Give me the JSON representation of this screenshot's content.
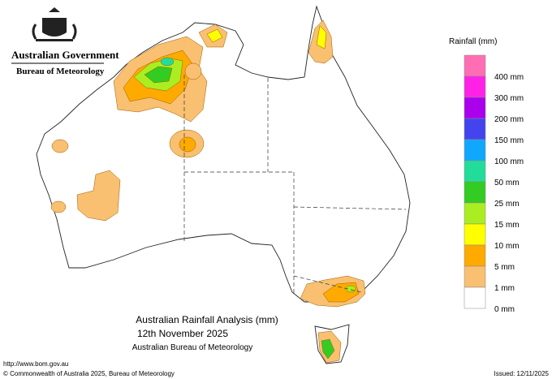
{
  "header": {
    "government": "Australian Government",
    "agency": "Bureau of Meteorology"
  },
  "legend": {
    "title": "Rainfall (mm)",
    "colors": [
      "#ff6eb4",
      "#ff22e6",
      "#aa00ee",
      "#4444ee",
      "#10a8ff",
      "#22dd99",
      "#33cc22",
      "#aaee22",
      "#ffff00",
      "#ffaa00",
      "#f8c070",
      "#ffffff"
    ],
    "labels": [
      "400 mm",
      "300 mm",
      "200 mm",
      "150 mm",
      "100 mm",
      "50 mm",
      "25 mm",
      "15 mm",
      "10 mm",
      "5 mm",
      "1 mm",
      "0 mm"
    ]
  },
  "map": {
    "title": "Australian Rainfall Analysis (mm)",
    "date": "12th November 2025",
    "source": "Australian Bureau of Meteorology"
  },
  "footer": {
    "url": "http://www.bom.gov.au",
    "copyright": "© Commonwealth of Australia 2025, Bureau of Meteorology",
    "issued": "Issued: 12/11/2025"
  }
}
